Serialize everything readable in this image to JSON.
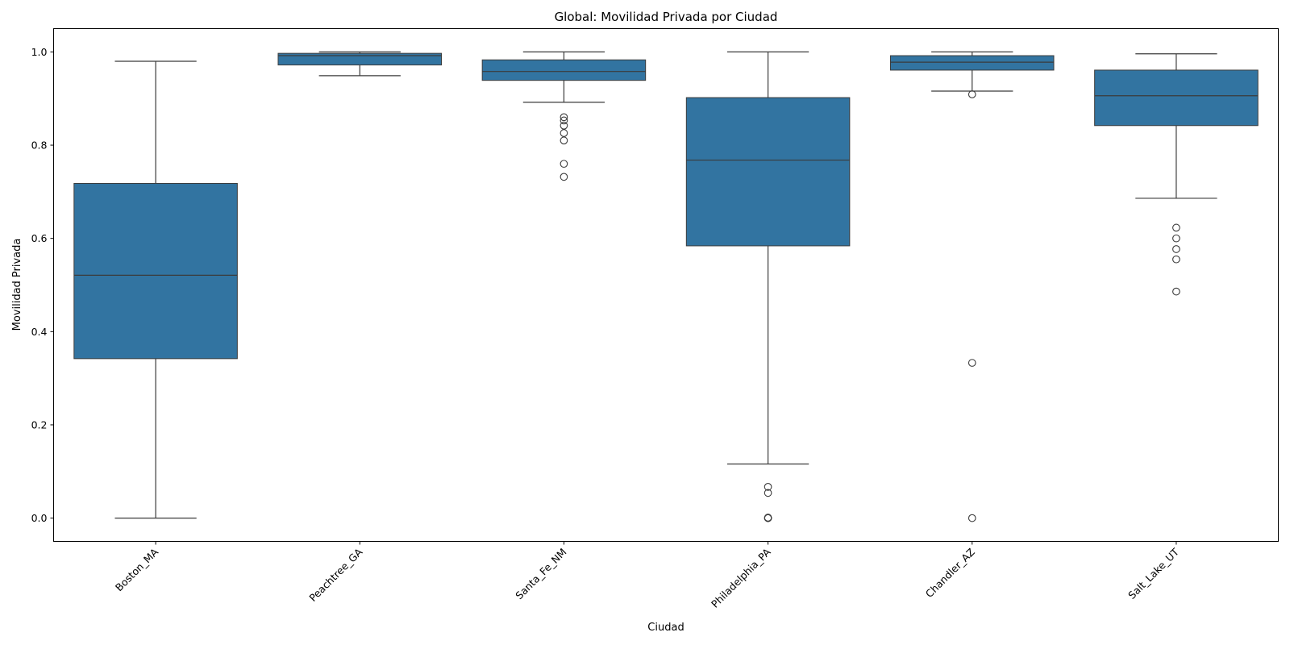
{
  "chart_data": {
    "type": "box",
    "title": "Global: Movilidad Privada por Ciudad",
    "xlabel": "Ciudad",
    "ylabel": "Movilidad Privada",
    "ylim": [
      -0.05,
      1.05
    ],
    "yticks": [
      "0.0",
      "0.2",
      "0.4",
      "0.6",
      "0.8",
      "1.0"
    ],
    "ytick_values": [
      0.0,
      0.2,
      0.4,
      0.6,
      0.8,
      1.0
    ],
    "box_color": "#3274a1",
    "line_color": "#3b3b3b",
    "grid": false,
    "categories": [
      "Boston_MA",
      "Peachtree_GA",
      "Santa_Fe_NM",
      "Philadelphia_PA",
      "Chandler_AZ",
      "Salt_Lake_UT"
    ],
    "boxes": [
      {
        "whisker_low": 0.0,
        "q1": 0.342,
        "median": 0.521,
        "q3": 0.718,
        "whisker_high": 0.98,
        "outliers": []
      },
      {
        "whisker_low": 0.949,
        "q1": 0.972,
        "median": 0.992,
        "q3": 0.997,
        "whisker_high": 1.0,
        "outliers": []
      },
      {
        "whisker_low": 0.892,
        "q1": 0.939,
        "median": 0.958,
        "q3": 0.983,
        "whisker_high": 1.0,
        "outliers": [
          0.86,
          0.853,
          0.842,
          0.826,
          0.81,
          0.76,
          0.732
        ]
      },
      {
        "whisker_low": 0.116,
        "q1": 0.584,
        "median": 0.768,
        "q3": 0.902,
        "whisker_high": 1.0,
        "outliers": [
          0.067,
          0.054,
          0.001,
          0.0,
          0.0
        ]
      },
      {
        "whisker_low": 0.916,
        "q1": 0.961,
        "median": 0.978,
        "q3": 0.992,
        "whisker_high": 1.0,
        "outliers": [
          0.909,
          0.333,
          0.0
        ]
      },
      {
        "whisker_low": 0.686,
        "q1": 0.842,
        "median": 0.906,
        "q3": 0.961,
        "whisker_high": 0.996,
        "outliers": [
          0.623,
          0.6,
          0.577,
          0.555,
          0.486
        ]
      }
    ]
  }
}
